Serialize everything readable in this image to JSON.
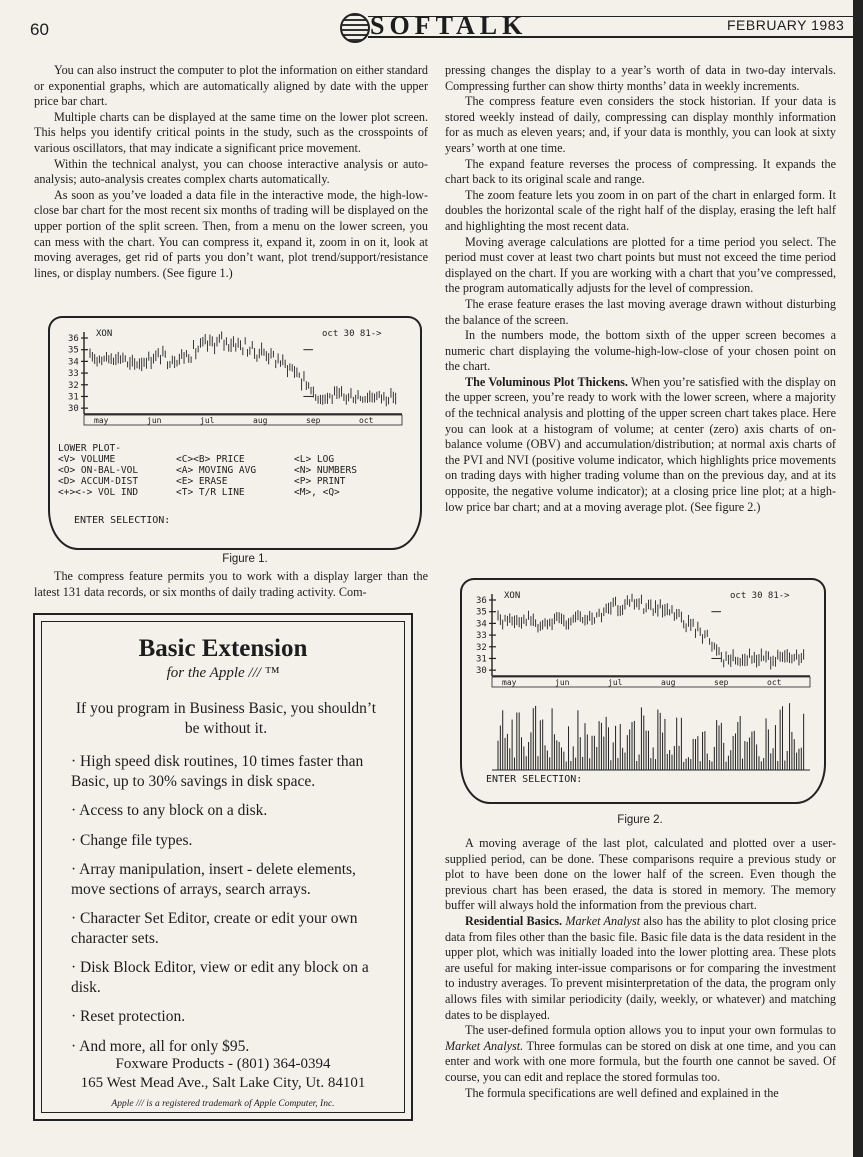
{
  "header": {
    "page_number": "60",
    "masthead": "SOFTALK",
    "date": "FEBRUARY 1983"
  },
  "col1": {
    "paragraphs": [
      "You can also instruct the computer to plot the information on either standard or exponential graphs, which are automatically aligned by date with the upper price bar chart.",
      "Multiple charts can be displayed at the same time on the lower plot screen. This helps you identify critical points in the study, such as the crosspoints of various oscillators, that may indicate a significant price movement.",
      "Within the technical analyst, you can choose interactive analysis or auto-analysis; auto-analysis creates complex charts automatically.",
      "As soon as you’ve loaded a data file in the interactive mode, the high-low-close bar chart for the most recent six months of trading will be displayed on the upper portion of the split screen. Then, from a menu on the lower screen, you can mess with the chart. You can compress it, expand it, zoom in on it, look at moving averages, get rid of parts you don’t want, plot trend/support/resistance lines, or display numbers. (See figure 1.)"
    ],
    "after_figure": "The compress feature permits you to work with a display larger than the latest 131 data records, or six months of daily trading activity. Com-"
  },
  "figure1": {
    "caption": "Figure 1.",
    "ticker": "XON",
    "date": "oct 30 81->",
    "y_ticks": [
      "36",
      "35",
      "34",
      "33",
      "32",
      "31",
      "30"
    ],
    "months": [
      "may",
      "jun",
      "jul",
      "aug",
      "sep",
      "oct"
    ],
    "menu_title": "LOWER PLOT-",
    "menu_rows": [
      [
        "<V> VOLUME",
        "<C><B> PRICE",
        "<L> LOG"
      ],
      [
        "<O> ON-BAL-VOL",
        "<A> MOVING AVG",
        "<N> NUMBERS"
      ],
      [
        "<D> ACCUM-DIST",
        "<E> ERASE",
        "<P> PRINT"
      ],
      [
        "<+><-> VOL IND",
        "<T> T/R LINE",
        "<M>, <Q>"
      ]
    ],
    "prompt": "ENTER SELECTION:"
  },
  "figure2": {
    "caption": "Figure 2.",
    "ticker": "XON",
    "date": "oct 30 81->",
    "y_ticks": [
      "36",
      "35",
      "34",
      "33",
      "32",
      "31",
      "30"
    ],
    "months": [
      "may",
      "jun",
      "jul",
      "aug",
      "sep",
      "oct"
    ],
    "prompt": "ENTER SELECTION:"
  },
  "ad": {
    "title": "Basic Extension",
    "subtitle": "for the Apple /// ™",
    "intro": "If you program in Business Basic, you shouldn’t be without it.",
    "bullets": [
      "· High speed disk routines, 10 times faster than Basic, up to 30% savings in disk space.",
      "· Access to any block on a disk.",
      "· Change file types.",
      "· Array manipulation, insert - delete elements, move sections of arrays, search arrays.",
      "· Character Set Editor, create or edit your own character sets.",
      "· Disk Block Editor, view or edit any block on a disk.",
      "· Reset protection.",
      "· And more, all for only $95."
    ],
    "company": "Foxware Products - (801) 364-0394",
    "address": "165 West Mead Ave., Salt Lake City, Ut. 84101",
    "trademark": "Apple /// is a registered trademark of Apple Computer, Inc."
  },
  "col2": {
    "top_paragraphs": [
      "pressing changes the display to a year’s worth of data in two-day intervals. Compressing further can show thirty months’ data in weekly increments.",
      "The compress feature even considers the stock historian. If your data is stored weekly instead of daily, compressing can display monthly information for as much as eleven years; and, if your data is monthly, you can look at sixty years’ worth at one time.",
      "The expand feature reverses the process of compressing. It expands the chart back to its original scale and range.",
      "The zoom feature lets you zoom in on part of the chart in enlarged form. It doubles the horizontal scale of the right half of the display, erasing the left half and highlighting the most recent data.",
      "Moving average calculations are plotted for a time period you select. The period must cover at least two chart points but must not exceed the time period displayed on the chart. If you are working with a chart that you’ve compressed, the program automatically adjusts for the level of compression.",
      "The erase feature erases the last moving average drawn without disturbing the balance of the screen.",
      "In the numbers mode, the bottom sixth of the upper screen becomes a numeric chart displaying the volume-high-low-close of your chosen point on the chart."
    ],
    "plot_head": "The Voluminous Plot Thickens.",
    "plot_text": " When you’re satisfied with the display on the upper screen, you’re ready to work with the lower screen, where a majority of the technical analysis and plotting of the upper screen chart takes place. Here you can look at a histogram of volume; at center (zero) axis charts of on-balance volume (OBV) and accumulation/distribution; at normal axis charts of the PVI and NVI (positive volume indicator, which highlights price movements on trading days with higher trading volume than on the previous day, and at its opposite, the negative volume indicator); at a closing price line plot; at a high-low price bar chart; and at a moving average plot. (See figure 2.)",
    "bottom_paragraph": "A moving average of the last plot, calculated and plotted over a user-supplied period, can be done. These comparisons require a previous study or plot to have been done on the lower half of the screen. Even though the previous chart has been erased, the data is stored in memory. The memory buffer will always hold the information from the previous chart.",
    "residual_head": "Residential Basics.",
    "residual_pre": " ",
    "residual_italic": "Market Analyst",
    "residual_text": " also has the ability to plot closing price data from files other than the basic file. Basic file data is the data resident in the upper plot, which was initially loaded into the lower plotting area. These plots are useful for making inter-issue comparisons or for comparing the investment to industry averages. To prevent misinterpretation of the data, the program only allows files with similar periodicity (daily, weekly, or whatever) and matching dates to be displayed.",
    "formula_pre": "The user-defined formula option allows you to input your own formulas to ",
    "formula_italic": "Market Analyst.",
    "formula_text": " Three formulas can be stored on disk at one time, and you can enter and work with one more formula, but the fourth one cannot be saved. Of course, you can edit and replace the stored formulas too.",
    "last_line": "The formula specifications are well defined and explained in the"
  }
}
